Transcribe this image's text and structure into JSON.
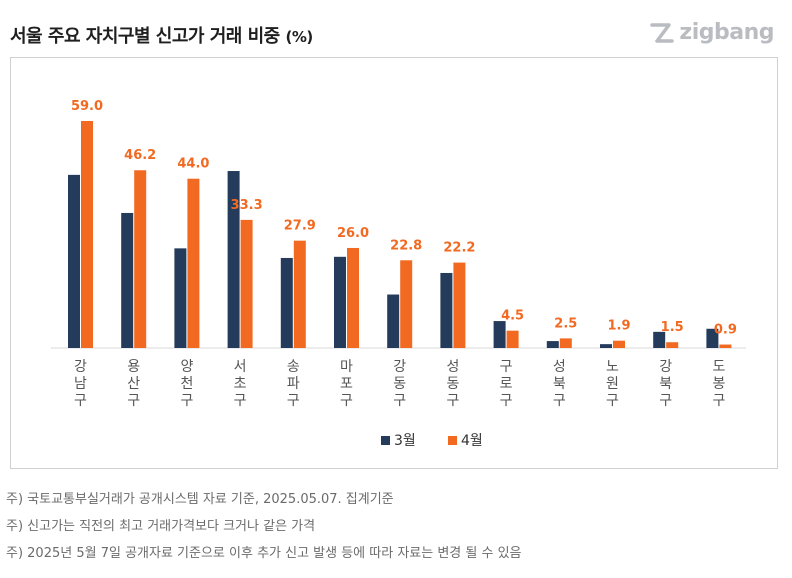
{
  "header": {
    "title": "서울 주요 자치구별 신고가 거래 비중",
    "unit": "(%)",
    "logo_text": "zigbang"
  },
  "colors": {
    "march": "#243b5c",
    "april": "#f26a21",
    "value_label": "#f26a21"
  },
  "chart_data": {
    "type": "bar",
    "title": "서울 주요 자치구별 신고가 거래 비중 (%)",
    "categories": [
      "강남구",
      "용산구",
      "양천구",
      "서초구",
      "송파구",
      "마포구",
      "강동구",
      "성동구",
      "구로구",
      "성북구",
      "노원구",
      "강북구",
      "도봉구"
    ],
    "series": [
      {
        "name": "3월",
        "values": [
          45.0,
          35.1,
          25.9,
          46.0,
          23.4,
          23.7,
          13.9,
          19.5,
          7.0,
          1.8,
          1.0,
          4.2,
          5.0
        ]
      },
      {
        "name": "4월",
        "values": [
          59.0,
          46.2,
          44.0,
          33.3,
          27.9,
          26.0,
          22.8,
          22.2,
          4.5,
          2.5,
          1.9,
          1.5,
          0.9
        ]
      }
    ],
    "data_labels": [
      "59.0",
      "46.2",
      "44.0",
      "33.3",
      "27.9",
      "26.0",
      "22.8",
      "22.2",
      "4.5",
      "2.5",
      "1.9",
      "1.5",
      "0.9"
    ],
    "xlabel": "",
    "ylabel": "",
    "ylim": [
      0,
      62
    ],
    "grid": false,
    "legend": {
      "position": "bottom",
      "entries": [
        "3월",
        "4월"
      ]
    }
  },
  "notes": [
    "주) 국토교통부실거래가 공개시스템 자료 기준, 2025.05.07. 집계기준",
    "주) 신고가는 직전의 최고 거래가격보다 크거나 같은 가격",
    "주) 2025년 5월 7일 공개자료 기준으로 이후 추가 신고 발생 등에 따라 자료는 변경 될 수 있음"
  ]
}
